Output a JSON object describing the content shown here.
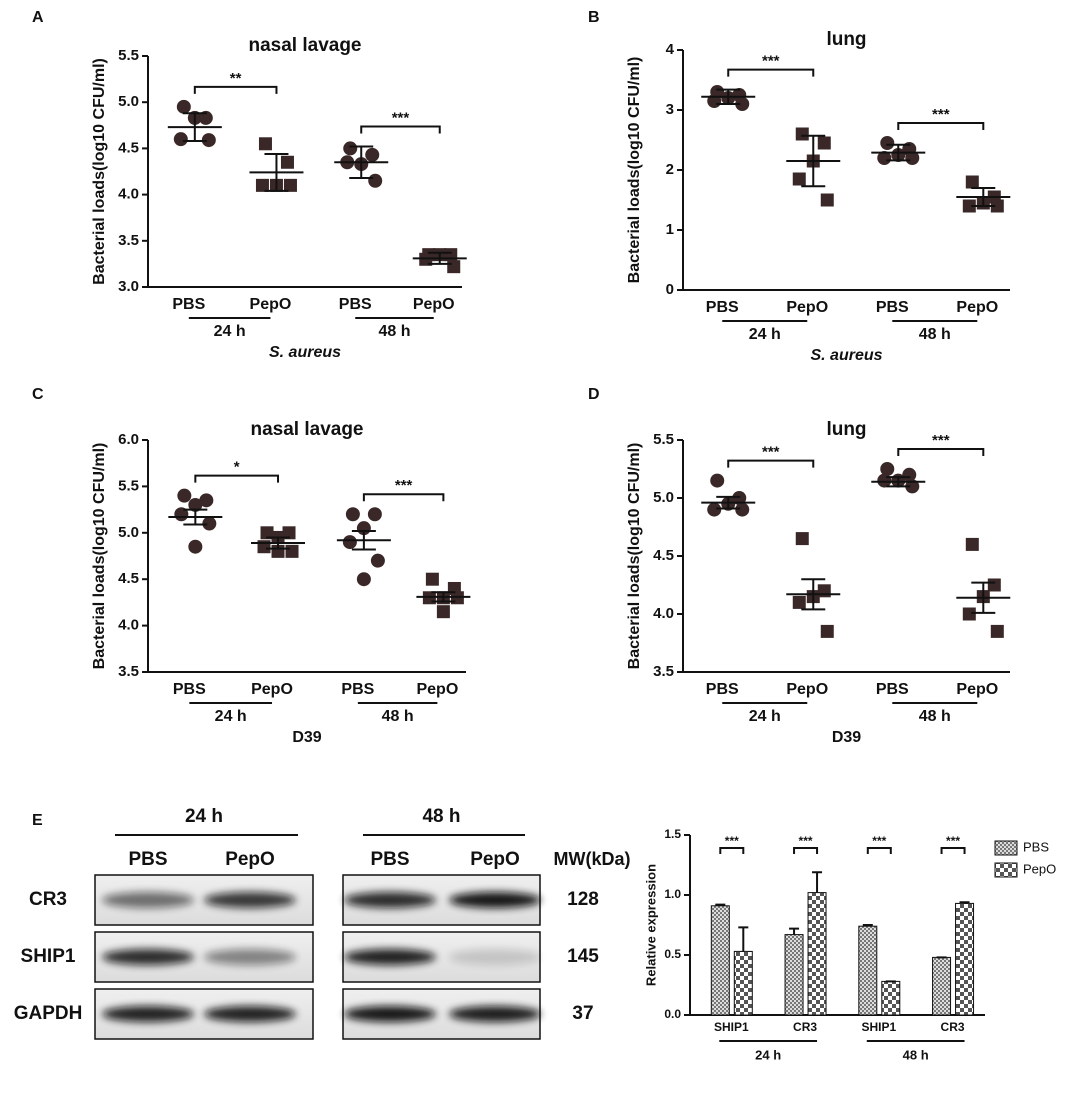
{
  "chart_data": [
    {
      "type": "dotplot",
      "panel": "A",
      "title": "nasal lavage",
      "ylabel": "Bacterial loads(log10 CFU/ml)",
      "xlabel": "S. aureus",
      "xlabel_italic": true,
      "categories": [
        "PBS",
        "PepO",
        "PBS",
        "PepO"
      ],
      "groups": [
        "24 h",
        "48 h"
      ],
      "ylim": [
        3,
        5.5
      ],
      "yticks": [
        {
          "value": 3,
          "label": "3.0"
        },
        3.5,
        {
          "value": 4,
          "label": "4.0"
        },
        4.5,
        {
          "value": 5,
          "label": "5.0"
        },
        5.5
      ],
      "significance": [
        "**",
        "***"
      ],
      "data": [
        {
          "marker": "circle",
          "color": "#3a2828",
          "points": [
            4.95,
            4.83,
            4.83,
            4.6,
            4.59
          ],
          "mean": 4.73,
          "error": 0.15
        },
        {
          "marker": "square",
          "color": "#3a2828",
          "points": [
            4.55,
            4.35,
            4.1,
            4.1,
            4.1
          ],
          "mean": 4.24,
          "error": 0.2
        },
        {
          "marker": "circle",
          "color": "#3a2828",
          "points": [
            4.5,
            4.43,
            4.33,
            4.35,
            4.15
          ],
          "mean": 4.35,
          "error": 0.17
        },
        {
          "marker": "square",
          "color": "#3a2828",
          "points": [
            3.35,
            3.35,
            3.35,
            3.3,
            3.22
          ],
          "mean": 3.31,
          "error": 0.06
        }
      ]
    },
    {
      "type": "dotplot",
      "panel": "B",
      "title": "lung",
      "ylabel": "Bacterial loads(log10 CFU/ml)",
      "xlabel": "S. aureus",
      "xlabel_italic": true,
      "categories": [
        "PBS",
        "PepO",
        "PBS",
        "PepO"
      ],
      "groups": [
        "24 h",
        "48 h"
      ],
      "ylim": [
        0,
        4
      ],
      "yticks": [
        0,
        1,
        2,
        3,
        4
      ],
      "significance": [
        "***",
        "***"
      ],
      "data": [
        {
          "marker": "circle",
          "color": "#3a2828",
          "points": [
            3.3,
            3.25,
            3.2,
            3.15,
            3.1
          ],
          "mean": 3.22,
          "error": 0.12
        },
        {
          "marker": "square",
          "color": "#3a2828",
          "points": [
            2.6,
            2.45,
            2.15,
            1.85,
            1.5
          ],
          "mean": 2.15,
          "error": 0.42
        },
        {
          "marker": "circle",
          "color": "#3a2828",
          "points": [
            2.45,
            2.35,
            2.25,
            2.2,
            2.2
          ],
          "mean": 2.29,
          "error": 0.13
        },
        {
          "marker": "square",
          "color": "#3a2828",
          "points": [
            1.8,
            1.55,
            1.45,
            1.4,
            1.4
          ],
          "mean": 1.55,
          "error": 0.15
        }
      ]
    },
    {
      "type": "dotplot",
      "panel": "C",
      "title": "nasal lavage",
      "ylabel": "Bacterial loads(log10 CFU/ml)",
      "xlabel": "D39",
      "xlabel_italic": false,
      "categories": [
        "PBS",
        "PepO",
        "PBS",
        "PepO"
      ],
      "groups": [
        "24 h",
        "48 h"
      ],
      "ylim": [
        3.5,
        6
      ],
      "yticks": [
        3.5,
        {
          "value": 4,
          "label": "4.0"
        },
        4.5,
        {
          "value": 5,
          "label": "5.0"
        },
        5.5,
        {
          "value": 6,
          "label": "6.0"
        }
      ],
      "significance": [
        "*",
        "***"
      ],
      "data": [
        {
          "marker": "circle",
          "color": "#3a2828",
          "points": [
            5.4,
            5.35,
            5.3,
            5.2,
            5.1,
            4.85
          ],
          "mean": 5.17,
          "error": 0.08
        },
        {
          "marker": "square",
          "color": "#3a2828",
          "points": [
            5.0,
            5.0,
            4.95,
            4.85,
            4.8,
            4.8
          ],
          "mean": 4.89,
          "error": 0.06
        },
        {
          "marker": "circle",
          "color": "#3a2828",
          "points": [
            5.2,
            5.2,
            5.05,
            4.9,
            4.7,
            4.5
          ],
          "mean": 4.92,
          "error": 0.1
        },
        {
          "marker": "square",
          "color": "#3a2828",
          "points": [
            4.5,
            4.4,
            4.3,
            4.3,
            4.3,
            4.15
          ],
          "mean": 4.31,
          "error": 0.05
        }
      ]
    },
    {
      "type": "dotplot",
      "panel": "D",
      "title": "lung",
      "ylabel": "Bacterial loads(log10 CFU/ml)",
      "xlabel": "D39",
      "xlabel_italic": false,
      "categories": [
        "PBS",
        "PepO",
        "PBS",
        "PepO"
      ],
      "groups": [
        "24 h",
        "48 h"
      ],
      "ylim": [
        3.5,
        5.5
      ],
      "yticks": [
        3.5,
        {
          "value": 4,
          "label": "4.0"
        },
        4.5,
        {
          "value": 5,
          "label": "5.0"
        },
        5.5
      ],
      "significance": [
        "***",
        "***"
      ],
      "data": [
        {
          "marker": "circle",
          "color": "#3a2828",
          "points": [
            5.15,
            5.0,
            4.95,
            4.9,
            4.9
          ],
          "mean": 4.96,
          "error": 0.05
        },
        {
          "marker": "square",
          "color": "#3a2828",
          "points": [
            4.65,
            4.2,
            4.15,
            4.1,
            3.85
          ],
          "mean": 4.17,
          "error": 0.13
        },
        {
          "marker": "circle",
          "color": "#3a2828",
          "points": [
            5.25,
            5.2,
            5.15,
            5.15,
            5.1
          ],
          "mean": 5.14,
          "error": 0.04
        },
        {
          "marker": "square",
          "color": "#3a2828",
          "points": [
            4.6,
            4.25,
            4.15,
            4.0,
            3.85
          ],
          "mean": 4.14,
          "error": 0.13
        }
      ]
    },
    {
      "type": "bar",
      "ylabel": "Relative expression",
      "categories": [
        "SHIP1",
        "CR3",
        "SHIP1",
        "CR3"
      ],
      "groups": [
        "24 h",
        "48 h"
      ],
      "ylim": [
        0,
        1.5
      ],
      "yticks": [
        {
          "value": 0,
          "label": "0.0"
        },
        0.5,
        {
          "value": 1,
          "label": "1.0"
        },
        1.5
      ],
      "significance": [
        "***",
        "***",
        "***",
        "***"
      ],
      "legend": "right",
      "series": [
        {
          "name": "PBS",
          "pattern": "fine-check",
          "values": [
            0.91,
            0.67,
            0.74,
            0.48
          ],
          "errors": [
            0.01,
            0.05,
            0.01,
            0
          ]
        },
        {
          "name": "PepO",
          "pattern": "coarse-check",
          "values": [
            0.53,
            1.02,
            0.28,
            0.93
          ],
          "errors": [
            0.2,
            0.17,
            0,
            0.01
          ]
        }
      ]
    }
  ],
  "blot": {
    "panel": "E",
    "times": [
      "24 h",
      "48 h"
    ],
    "lanes": [
      "PBS",
      "PepO",
      "PBS",
      "PepO"
    ],
    "mw_header": "MW(kDa)",
    "rows": [
      {
        "name": "CR3",
        "mw": 128
      },
      {
        "name": "SHIP1",
        "mw": 145
      },
      {
        "name": "GAPDH",
        "mw": 37
      }
    ]
  }
}
